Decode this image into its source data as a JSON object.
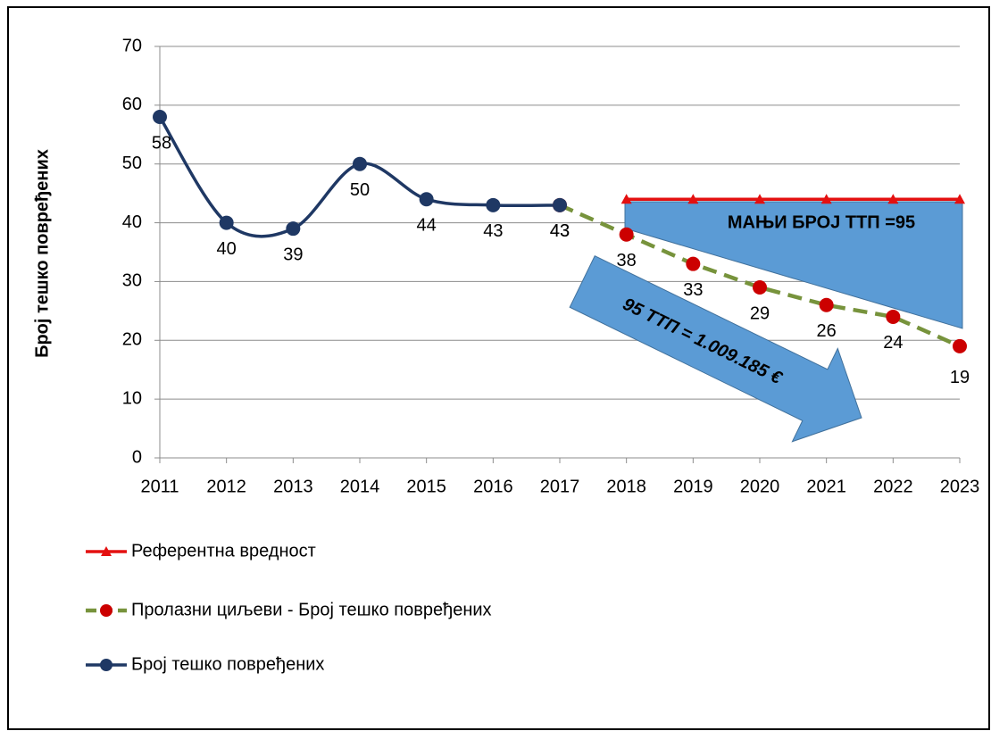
{
  "chart_data": {
    "type": "line",
    "y_axis_label": "Број тешко повређених",
    "categories": [
      "2011",
      "2012",
      "2013",
      "2014",
      "2015",
      "2016",
      "2017",
      "2018",
      "2019",
      "2020",
      "2021",
      "2022",
      "2023"
    ],
    "series": [
      {
        "name": "Референтна вредност",
        "color": "#e41010",
        "marker": "triangle",
        "smooth": false,
        "dashed": false,
        "labels": false,
        "values": [
          null,
          null,
          null,
          null,
          null,
          null,
          null,
          44,
          44,
          44,
          44,
          44,
          44
        ]
      },
      {
        "name": "Пролазни циљеви - Број тешко повређених",
        "color": "#77933c",
        "marker_color": "#cc0000",
        "marker": "circle",
        "smooth": false,
        "dashed": true,
        "labels": true,
        "values": [
          null,
          null,
          null,
          null,
          null,
          null,
          43,
          38,
          33,
          29,
          26,
          24,
          19
        ]
      },
      {
        "name": "Број тешко повређених",
        "color": "#1f3864",
        "marker_color": "#1f3864",
        "marker": "circle",
        "smooth": true,
        "dashed": false,
        "labels": true,
        "values": [
          58,
          40,
          39,
          50,
          44,
          43,
          43,
          null,
          null,
          null,
          null,
          null,
          null
        ]
      }
    ],
    "ylim": [
      0,
      70
    ],
    "yticks": [
      0,
      10,
      20,
      30,
      40,
      50,
      60,
      70
    ],
    "grid": true,
    "annotations": [
      "МАЊИ БРОЈ ТТП =95",
      "95 ТТП = 1.009.185 €"
    ]
  }
}
